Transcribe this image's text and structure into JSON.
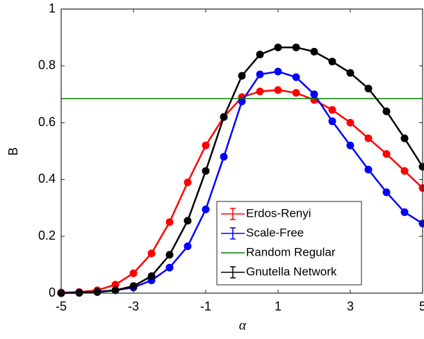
{
  "chart_data": {
    "type": "line",
    "xlabel": "α",
    "ylabel": "B",
    "x": [
      -5,
      -4.5,
      -4,
      -3.5,
      -3,
      -2.5,
      -2,
      -1.5,
      -1,
      -0.5,
      0,
      0.5,
      1,
      1.5,
      2,
      2.5,
      3,
      3.5,
      4,
      4.5,
      5
    ],
    "series": [
      {
        "name": "Erdos-Renyi",
        "color": "#ff0000",
        "values": [
          0.002,
          0.004,
          0.01,
          0.03,
          0.07,
          0.14,
          0.25,
          0.39,
          0.52,
          0.62,
          0.69,
          0.71,
          0.715,
          0.705,
          0.68,
          0.645,
          0.6,
          0.545,
          0.49,
          0.43,
          0.37
        ]
      },
      {
        "name": "Scale-Free",
        "color": "#0000ff",
        "values": [
          0,
          0.002,
          0.005,
          0.01,
          0.02,
          0.045,
          0.09,
          0.165,
          0.295,
          0.48,
          0.675,
          0.77,
          0.78,
          0.76,
          0.7,
          0.605,
          0.52,
          0.435,
          0.355,
          0.285,
          0.245
        ]
      },
      {
        "name": "Random Regular",
        "color": "#008000",
        "hline": 0.685
      },
      {
        "name": "Gnutella Network",
        "color": "#000000",
        "values": [
          0,
          0.001,
          0.004,
          0.01,
          0.025,
          0.06,
          0.135,
          0.255,
          0.43,
          0.62,
          0.765,
          0.84,
          0.865,
          0.865,
          0.85,
          0.815,
          0.775,
          0.72,
          0.64,
          0.545,
          0.445
        ]
      }
    ],
    "xlim": [
      -5,
      5
    ],
    "xticks": [
      -5,
      -3,
      -1,
      1,
      3,
      5
    ],
    "ylim": [
      0,
      1
    ],
    "yticks": [
      0,
      0.2,
      0.4,
      0.6,
      0.8,
      1
    ],
    "legend": "lower-center"
  }
}
